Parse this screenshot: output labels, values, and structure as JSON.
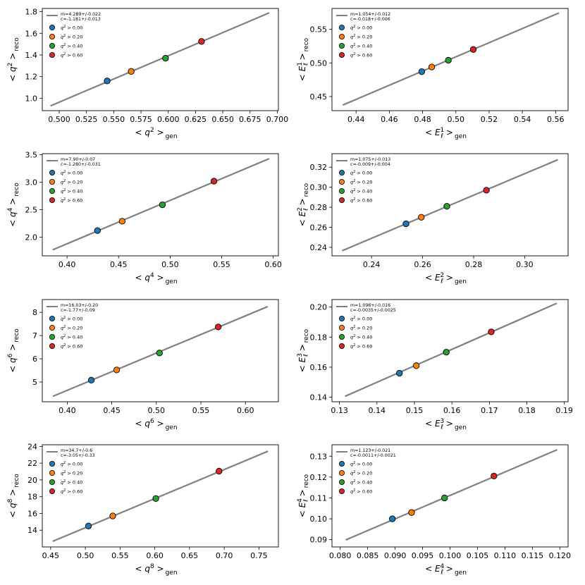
{
  "legend_labels": [
    "q^2 > 0.00",
    "q^2 > 0.20",
    "q^2 > 0.40",
    "q^2 > 0.60"
  ],
  "point_colors": [
    "#1f77b4",
    "#ff7f0e",
    "#2ca02c",
    "#d62728"
  ],
  "fit_line_color": "#808080",
  "chart_data": [
    {
      "type": "scatter",
      "xlabel": "< q^2 >",
      "xlabel_sub": "gen",
      "ylabel": "< q^2 >",
      "ylabel_sub": "reco",
      "fit_text": [
        "m=4.289+/-0.022",
        "c=-1.181+/-0.013"
      ],
      "fit": {
        "m": 4.289,
        "c": -1.181,
        "x0": 0.492,
        "x1": 0.6925
      },
      "xlim": [
        0.4845,
        0.701
      ],
      "ylim": [
        0.885,
        1.83
      ],
      "xticks": [
        0.5,
        0.525,
        0.55,
        0.575,
        0.6,
        0.625,
        0.65,
        0.675,
        0.7
      ],
      "xtick_labels": [
        "0.500",
        "0.525",
        "0.550",
        "0.575",
        "0.600",
        "0.625",
        "0.650",
        "0.675",
        "0.700"
      ],
      "yticks": [
        1.0,
        1.2,
        1.4,
        1.6,
        1.8
      ],
      "ytick_labels": [
        "1.0",
        "1.2",
        "1.4",
        "1.6",
        "1.8"
      ],
      "points": [
        {
          "x": 0.544,
          "y": 1.16
        },
        {
          "x": 0.566,
          "y": 1.248
        },
        {
          "x": 0.5975,
          "y": 1.37
        },
        {
          "x": 0.6305,
          "y": 1.525
        }
      ]
    },
    {
      "type": "scatter",
      "xlabel": "< E_ℓ^1 >",
      "xlabel_sub": "gen",
      "ylabel": "< E_ℓ^1 >",
      "ylabel_sub": "reco",
      "fit_text": [
        "m=1.054+/-0.012",
        "c=-0.018+/-0.006"
      ],
      "fit": {
        "m": 1.054,
        "c": -0.018,
        "x0": 0.432,
        "x1": 0.562
      },
      "xlim": [
        0.4255,
        0.5675
      ],
      "ylim": [
        0.429,
        0.581
      ],
      "xticks": [
        0.44,
        0.46,
        0.48,
        0.5,
        0.52,
        0.54,
        0.56
      ],
      "xtick_labels": [
        "0.44",
        "0.46",
        "0.48",
        "0.50",
        "0.52",
        "0.54",
        "0.56"
      ],
      "yticks": [
        0.45,
        0.5,
        0.55
      ],
      "ytick_labels": [
        "0.45",
        "0.50",
        "0.55"
      ],
      "points": [
        {
          "x": 0.4795,
          "y": 0.487
        },
        {
          "x": 0.4855,
          "y": 0.494
        },
        {
          "x": 0.4955,
          "y": 0.504
        },
        {
          "x": 0.5105,
          "y": 0.52
        }
      ]
    },
    {
      "type": "scatter",
      "xlabel": "< q^4 >",
      "xlabel_sub": "gen",
      "ylabel": "< q^4 >",
      "ylabel_sub": "reco",
      "fit_text": [
        "m=7.90+/-0.07",
        "c=-1.280+/-0.031"
      ],
      "fit": {
        "m": 7.9,
        "c": -1.28,
        "x0": 0.386,
        "x1": 0.596
      },
      "xlim": [
        0.376,
        0.605
      ],
      "ylim": [
        1.66,
        3.52
      ],
      "xticks": [
        0.4,
        0.45,
        0.5,
        0.55,
        0.6
      ],
      "xtick_labels": [
        "0.40",
        "0.45",
        "0.50",
        "0.55",
        "0.60"
      ],
      "yticks": [
        2.0,
        2.5,
        3.0,
        3.5
      ],
      "ytick_labels": [
        "2.0",
        "2.5",
        "3.0",
        "3.5"
      ],
      "points": [
        {
          "x": 0.4295,
          "y": 2.12
        },
        {
          "x": 0.4535,
          "y": 2.29
        },
        {
          "x": 0.4925,
          "y": 2.59
        },
        {
          "x": 0.5425,
          "y": 3.02
        }
      ]
    },
    {
      "type": "scatter",
      "xlabel": "< E_ℓ^2 >",
      "xlabel_sub": "gen",
      "ylabel": "< E_ℓ^2 >",
      "ylabel_sub": "reco",
      "fit_text": [
        "m=1.075+/-0.013",
        "c=-0.009+/-0.004"
      ],
      "fit": {
        "m": 1.075,
        "c": -0.009,
        "x0": 0.2285,
        "x1": 0.313
      },
      "xlim": [
        0.2245,
        0.317
      ],
      "ylim": [
        0.2315,
        0.3335
      ],
      "xticks": [
        0.24,
        0.26,
        0.28,
        0.3
      ],
      "xtick_labels": [
        "0.24",
        "0.26",
        "0.28",
        "0.30"
      ],
      "yticks": [
        0.24,
        0.26,
        0.28,
        0.3,
        0.32
      ],
      "ytick_labels": [
        "0.24",
        "0.26",
        "0.28",
        "0.30",
        "0.32"
      ],
      "points": [
        {
          "x": 0.2535,
          "y": 0.2635
        },
        {
          "x": 0.2595,
          "y": 0.27
        },
        {
          "x": 0.2695,
          "y": 0.281
        },
        {
          "x": 0.285,
          "y": 0.297
        }
      ]
    },
    {
      "type": "scatter",
      "xlabel": "< q^6 >",
      "xlabel_sub": "gen",
      "ylabel": "< q^6 >",
      "ylabel_sub": "reco",
      "fit_text": [
        "m=16.03+/-0.20",
        "c=-1.77+/-0.09"
      ],
      "fit": {
        "m": 16.03,
        "c": -1.77,
        "x0": 0.384,
        "x1": 0.625
      },
      "xlim": [
        0.372,
        0.637
      ],
      "ylim": [
        4.15,
        8.55
      ],
      "xticks": [
        0.4,
        0.45,
        0.5,
        0.55,
        0.6
      ],
      "xtick_labels": [
        "0.40",
        "0.45",
        "0.50",
        "0.55",
        "0.60"
      ],
      "yticks": [
        5,
        6,
        7,
        8
      ],
      "ytick_labels": [
        "5",
        "6",
        "7",
        "8"
      ],
      "points": [
        {
          "x": 0.427,
          "y": 5.08
        },
        {
          "x": 0.4555,
          "y": 5.52
        },
        {
          "x": 0.5035,
          "y": 6.25
        },
        {
          "x": 0.5695,
          "y": 7.37
        }
      ]
    },
    {
      "type": "scatter",
      "xlabel": "< E_ℓ^3 >",
      "xlabel_sub": "gen",
      "ylabel": "< E_ℓ^3 >",
      "ylabel_sub": "reco",
      "fit_text": [
        "m=1.096+/-0.016",
        "c=-0.0035+/-0.0025"
      ],
      "fit": {
        "m": 1.096,
        "c": -0.0035,
        "x0": 0.1315,
        "x1": 0.188
      },
      "xlim": [
        0.128,
        0.191
      ],
      "ylim": [
        0.137,
        0.205
      ],
      "xticks": [
        0.13,
        0.14,
        0.15,
        0.16,
        0.17,
        0.18,
        0.19
      ],
      "xtick_labels": [
        "0.13",
        "0.14",
        "0.15",
        "0.16",
        "0.17",
        "0.18",
        "0.19"
      ],
      "yticks": [
        0.14,
        0.16,
        0.18,
        0.2
      ],
      "ytick_labels": [
        "0.14",
        "0.16",
        "0.18",
        "0.20"
      ],
      "points": [
        {
          "x": 0.146,
          "y": 0.156
        },
        {
          "x": 0.1505,
          "y": 0.161
        },
        {
          "x": 0.1585,
          "y": 0.17
        },
        {
          "x": 0.1705,
          "y": 0.1835
        }
      ]
    },
    {
      "type": "scatter",
      "xlabel": "< q^8 >",
      "xlabel_sub": "gen",
      "ylabel": "< q^8 >",
      "ylabel_sub": "reco",
      "fit_text": [
        "m=34.7+/-0.6",
        "c=-3.05+/-0.33"
      ],
      "fit": {
        "m": 34.7,
        "c": -3.05,
        "x0": 0.453,
        "x1": 0.763
      },
      "xlim": [
        0.438,
        0.778
      ],
      "ylim": [
        12.0,
        24.2
      ],
      "xticks": [
        0.45,
        0.5,
        0.55,
        0.6,
        0.65,
        0.7,
        0.75
      ],
      "xtick_labels": [
        "0.45",
        "0.50",
        "0.55",
        "0.60",
        "0.65",
        "0.70",
        "0.75"
      ],
      "yticks": [
        14,
        16,
        18,
        20,
        22,
        24
      ],
      "ytick_labels": [
        "14",
        "16",
        "18",
        "20",
        "22",
        "24"
      ],
      "points": [
        {
          "x": 0.5045,
          "y": 14.5
        },
        {
          "x": 0.5395,
          "y": 15.7
        },
        {
          "x": 0.6015,
          "y": 17.78
        },
        {
          "x": 0.6925,
          "y": 21.05
        }
      ]
    },
    {
      "type": "scatter",
      "xlabel": "< E_ℓ^4 >",
      "xlabel_sub": "gen",
      "ylabel": "< E_ℓ^4 >",
      "ylabel_sub": "reco",
      "fit_text": [
        "m=1.123+/-0.021",
        "c=-0.0011+/-0.0021"
      ],
      "fit": {
        "m": 1.123,
        "c": -0.0011,
        "x0": 0.081,
        "x1": 0.1195
      },
      "xlim": [
        0.0785,
        0.1215
      ],
      "ylim": [
        0.0865,
        0.1355
      ],
      "xticks": [
        0.08,
        0.085,
        0.09,
        0.095,
        0.1,
        0.105,
        0.11,
        0.115,
        0.12
      ],
      "xtick_labels": [
        "0.080",
        "0.085",
        "0.090",
        "0.095",
        "0.100",
        "0.105",
        "0.110",
        "0.115",
        "0.120"
      ],
      "yticks": [
        0.09,
        0.1,
        0.11,
        0.12,
        0.13
      ],
      "ytick_labels": [
        "0.09",
        "0.10",
        "0.11",
        "0.12",
        "0.13"
      ],
      "points": [
        {
          "x": 0.0895,
          "y": 0.1
        },
        {
          "x": 0.093,
          "y": 0.103
        },
        {
          "x": 0.099,
          "y": 0.11
        },
        {
          "x": 0.108,
          "y": 0.1205
        }
      ]
    }
  ]
}
